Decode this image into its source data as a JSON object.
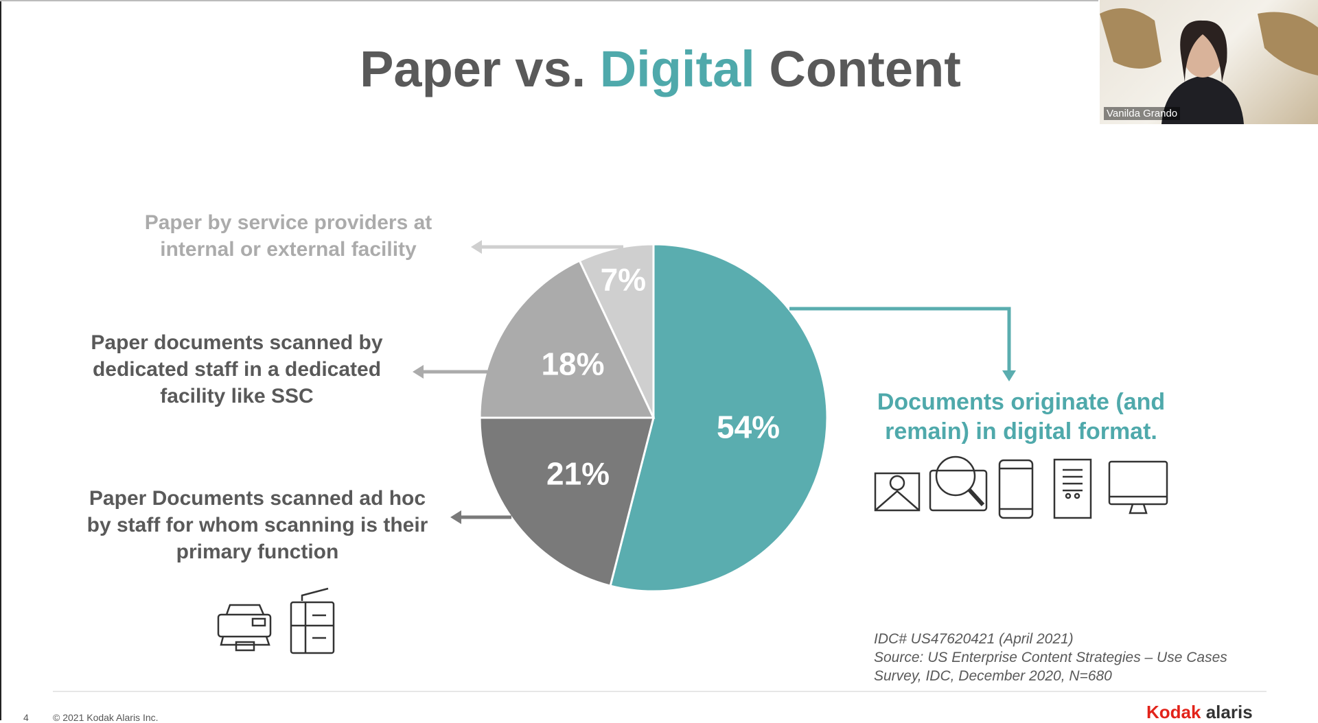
{
  "chart_data": {
    "type": "pie",
    "title": [
      "Paper vs.",
      "Digital",
      "Content"
    ],
    "categories": [
      "Documents originate (and remain) in digital format.",
      "Paper Documents scanned ad hoc by staff for whom scanning is their primary function",
      "Paper documents scanned by dedicated staff in a dedicated facility like SSC",
      "Paper by service providers at internal or external facility"
    ],
    "values": [
      54,
      21,
      18,
      7
    ],
    "value_labels": [
      "54%",
      "21%",
      "18%",
      "7%"
    ],
    "colors": [
      "#5aadaf",
      "#7a7a7a",
      "#ababab",
      "#cfcfcf"
    ],
    "source": [
      "IDC# US47620421 (April 2021)",
      "Source: US Enterprise Content Strategies – Use Cases Survey, IDC, December 2020, N=680"
    ]
  },
  "footer": {
    "page": "4",
    "copyright": "© 2021 Kodak Alaris Inc.",
    "logo": [
      "Kodak",
      "alaris"
    ]
  },
  "video": {
    "name": "Vanilda Grando"
  }
}
